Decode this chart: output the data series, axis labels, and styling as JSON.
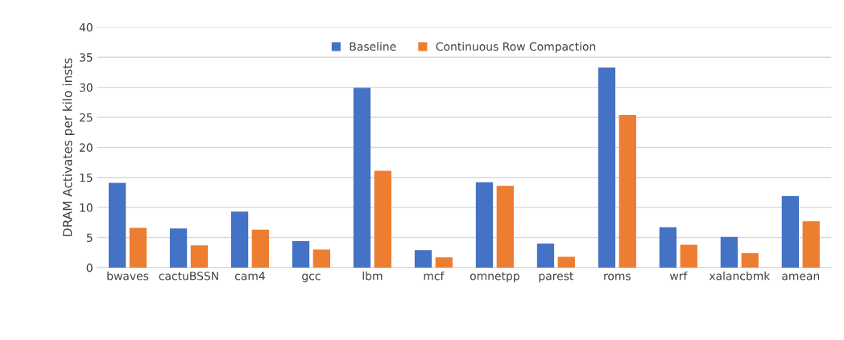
{
  "chart_data": {
    "type": "bar",
    "ylabel": "DRAM Activates per kilo insts",
    "categories": [
      "bwaves",
      "cactuBSSN",
      "cam4",
      "gcc",
      "lbm",
      "mcf",
      "omnetpp",
      "parest",
      "roms",
      "wrf",
      "xalancbmk",
      "amean"
    ],
    "series": [
      {
        "name": "Baseline",
        "color": "#4472c4",
        "values": [
          14.1,
          6.5,
          9.3,
          4.4,
          29.9,
          2.9,
          14.2,
          4.0,
          33.3,
          6.7,
          5.1,
          11.9
        ]
      },
      {
        "name": "Continuous Row Compaction",
        "color": "#ed7d31",
        "values": [
          6.6,
          3.7,
          6.3,
          3.0,
          16.1,
          1.7,
          13.6,
          1.8,
          25.4,
          3.8,
          2.4,
          7.7
        ]
      }
    ],
    "ylim": [
      0,
      40
    ],
    "yticks": [
      0,
      5,
      10,
      15,
      20,
      25,
      30,
      35,
      40
    ],
    "grid": "y",
    "legend": "top"
  }
}
